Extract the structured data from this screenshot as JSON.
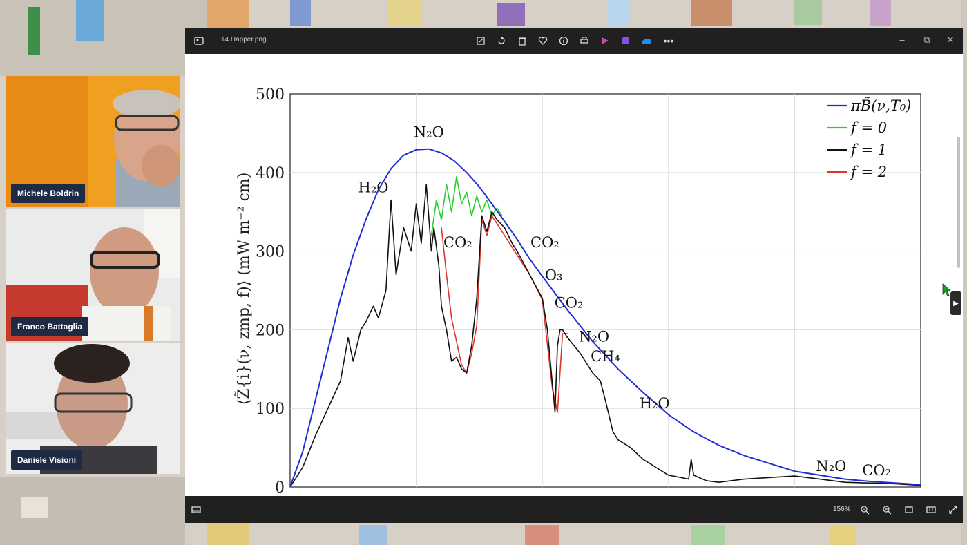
{
  "participants": [
    {
      "name": "Michele Boldrin"
    },
    {
      "name": "Franco Battaglia"
    },
    {
      "name": "Daniele Visioni"
    }
  ],
  "viewer": {
    "filename": "14.Happer.png",
    "zoom": "156%",
    "toolbar_icons": [
      "edit-icon",
      "rotate-icon",
      "delete-icon",
      "favorite-icon",
      "info-icon",
      "print-icon",
      "app-icon",
      "app-icon",
      "onedrive-icon",
      "more-icon"
    ],
    "window_controls": {
      "minimize": "–",
      "maximize": "⧉",
      "close": "✕"
    },
    "bottom_icons": [
      "filmstrip-icon",
      "zoom-out-icon",
      "zoom-in-icon",
      "fit-icon",
      "actual-size-icon",
      "fullscreen-icon"
    ]
  },
  "colors": {
    "planck": "#1f2ed6",
    "f0": "#2ecc2e",
    "f1": "#111111",
    "f2": "#e0342a"
  },
  "chart_data": {
    "type": "line",
    "ylabel": "⟨Z̃{i}(ν, zmp, f)⟩ (mW m⁻² cm)",
    "xlim": [
      0,
      2500
    ],
    "ylim": [
      0,
      500
    ],
    "xticks": [
      0,
      500,
      1000,
      1500,
      2000,
      2500
    ],
    "yticks": [
      0,
      100,
      200,
      300,
      400,
      500
    ],
    "grid": true,
    "legend_position": "top-right",
    "legend": [
      {
        "label": "πB̃(ν,T₀)",
        "color": "#1f2ed6"
      },
      {
        "label": "f = 0",
        "color": "#2ecc2e"
      },
      {
        "label": "f = 1",
        "color": "#111111"
      },
      {
        "label": "f = 2",
        "color": "#e0342a"
      }
    ],
    "annotations": [
      {
        "text": "N₂O",
        "x": 550,
        "y": 445
      },
      {
        "text": "H₂O",
        "x": 330,
        "y": 375
      },
      {
        "text": "CO₂",
        "x": 665,
        "y": 305
      },
      {
        "text": "CO₂",
        "x": 1010,
        "y": 305
      },
      {
        "text": "O₃",
        "x": 1045,
        "y": 263
      },
      {
        "text": "CO₂",
        "x": 1105,
        "y": 228
      },
      {
        "text": "N₂O",
        "x": 1205,
        "y": 185
      },
      {
        "text": "CH₄",
        "x": 1250,
        "y": 160
      },
      {
        "text": "H₂O",
        "x": 1445,
        "y": 100
      },
      {
        "text": "N₂O",
        "x": 2145,
        "y": 20
      },
      {
        "text": "CO₂",
        "x": 2325,
        "y": 15
      }
    ],
    "series": [
      {
        "name": "πB̃(ν,T₀)",
        "x": [
          0,
          50,
          100,
          150,
          200,
          250,
          300,
          350,
          400,
          450,
          500,
          550,
          600,
          650,
          700,
          750,
          800,
          850,
          900,
          950,
          1000,
          1100,
          1200,
          1300,
          1400,
          1500,
          1600,
          1700,
          1800,
          1900,
          2000,
          2100,
          2200,
          2300,
          2400,
          2500
        ],
        "y": [
          0,
          45,
          110,
          175,
          240,
          295,
          340,
          378,
          405,
          422,
          429,
          430,
          425,
          415,
          400,
          382,
          360,
          338,
          315,
          290,
          268,
          225,
          185,
          150,
          120,
          92,
          70,
          53,
          40,
          30,
          20,
          15,
          10,
          7,
          5,
          3
        ]
      },
      {
        "name": "f = 0",
        "x": [
          560,
          580,
          600,
          620,
          640,
          660,
          680,
          700,
          720,
          740,
          760,
          780,
          800,
          820,
          840
        ],
        "y": [
          320,
          365,
          340,
          385,
          350,
          395,
          360,
          375,
          345,
          370,
          350,
          365,
          345,
          355,
          345
        ]
      },
      {
        "name": "f = 1",
        "x": [
          0,
          50,
          100,
          150,
          200,
          230,
          250,
          280,
          300,
          330,
          350,
          380,
          400,
          420,
          450,
          480,
          500,
          520,
          540,
          560,
          570,
          590,
          600,
          620,
          640,
          660,
          680,
          700,
          720,
          740,
          760,
          780,
          800,
          820,
          850,
          880,
          900,
          950,
          1000,
          1020,
          1040,
          1050,
          1060,
          1070,
          1080,
          1100,
          1150,
          1200,
          1230,
          1250,
          1280,
          1300,
          1350,
          1400,
          1450,
          1500,
          1550,
          1580,
          1590,
          1600,
          1650,
          1700,
          1800,
          1900,
          2000,
          2100,
          2200,
          2300,
          2400,
          2500
        ],
        "y": [
          0,
          25,
          65,
          100,
          135,
          190,
          160,
          200,
          210,
          230,
          215,
          250,
          365,
          270,
          330,
          300,
          360,
          310,
          385,
          300,
          330,
          280,
          230,
          200,
          160,
          165,
          150,
          145,
          180,
          240,
          345,
          325,
          350,
          340,
          330,
          310,
          300,
          270,
          240,
          200,
          130,
          95,
          180,
          200,
          200,
          190,
          170,
          145,
          135,
          110,
          70,
          60,
          50,
          35,
          25,
          15,
          12,
          10,
          35,
          15,
          8,
          6,
          10,
          12,
          14,
          10,
          6,
          5,
          4,
          2
        ]
      },
      {
        "name": "f = 2",
        "x": [
          600,
          620,
          640,
          660,
          680,
          700,
          720,
          740,
          760,
          780,
          800,
          950,
          1000,
          1040,
          1060,
          1080,
          1100
        ],
        "y": [
          330,
          270,
          215,
          185,
          155,
          145,
          170,
          205,
          340,
          320,
          345,
          270,
          238,
          125,
          95,
          195,
          195
        ]
      }
    ]
  }
}
